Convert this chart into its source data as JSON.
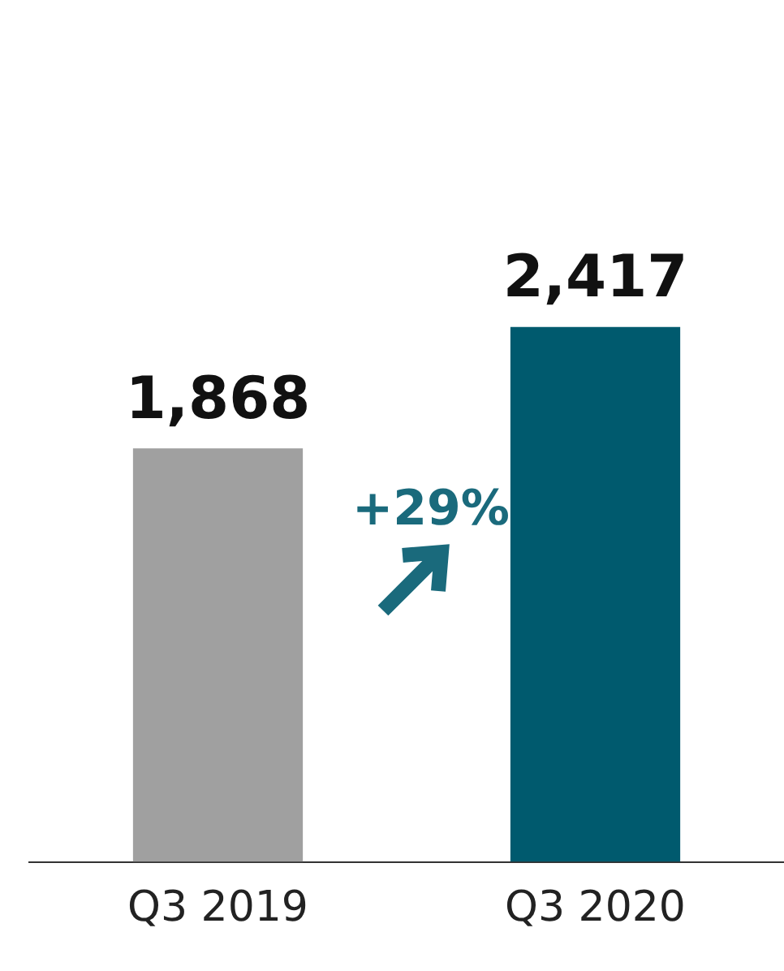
{
  "chart_data": {
    "type": "bar",
    "categories": [
      "Q3 2019",
      "Q3 2020"
    ],
    "values": [
      1868,
      2417
    ],
    "colors": [
      "#a0a0a0",
      "#005a6e"
    ],
    "value_labels": [
      "1,868",
      "2,417"
    ],
    "grid": false,
    "legend": false,
    "annotations": [
      "+29%"
    ]
  }
}
